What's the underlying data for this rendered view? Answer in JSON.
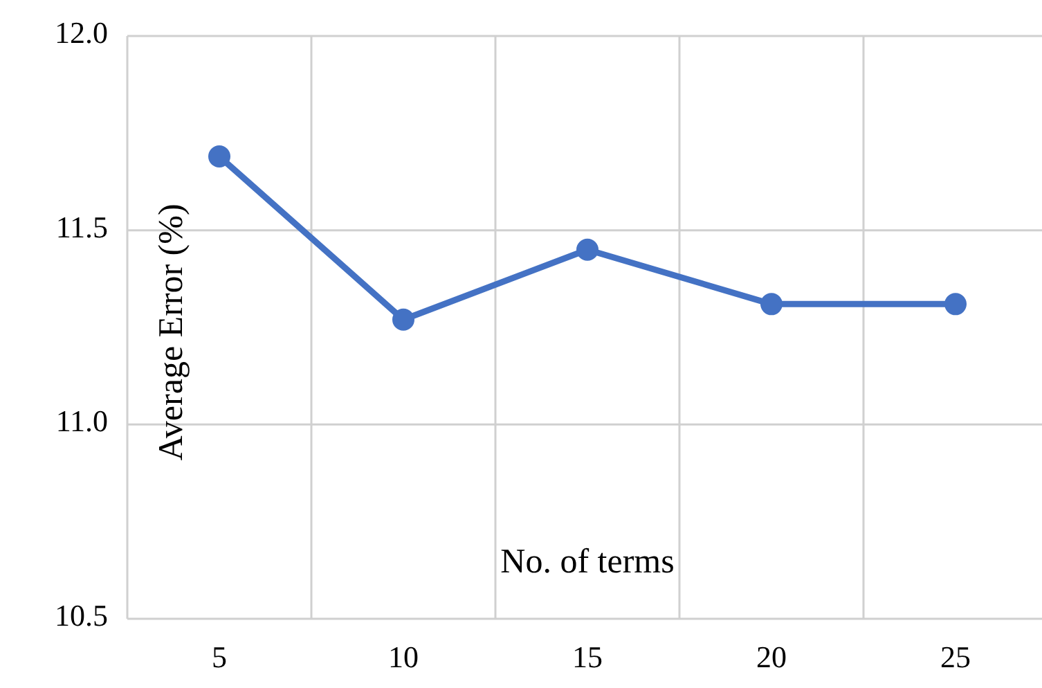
{
  "chart_data": {
    "type": "line",
    "xlabel": "No. of terms",
    "ylabel": "Average Error (%)",
    "categories": [
      "5",
      "10",
      "15",
      "20",
      "25"
    ],
    "series": [
      {
        "color": "#4472c4",
        "values": [
          11.69,
          11.27,
          11.45,
          11.31,
          11.31
        ]
      }
    ],
    "ylim": [
      10.5,
      12.0
    ],
    "yticks": [
      {
        "value": 10.5,
        "label": "10.5"
      },
      {
        "value": 11.0,
        "label": "11.0"
      },
      {
        "value": 11.5,
        "label": "11.5"
      },
      {
        "value": 12.0,
        "label": "12.0"
      }
    ],
    "grid": true,
    "marker": "circle",
    "line_style": "solid"
  }
}
